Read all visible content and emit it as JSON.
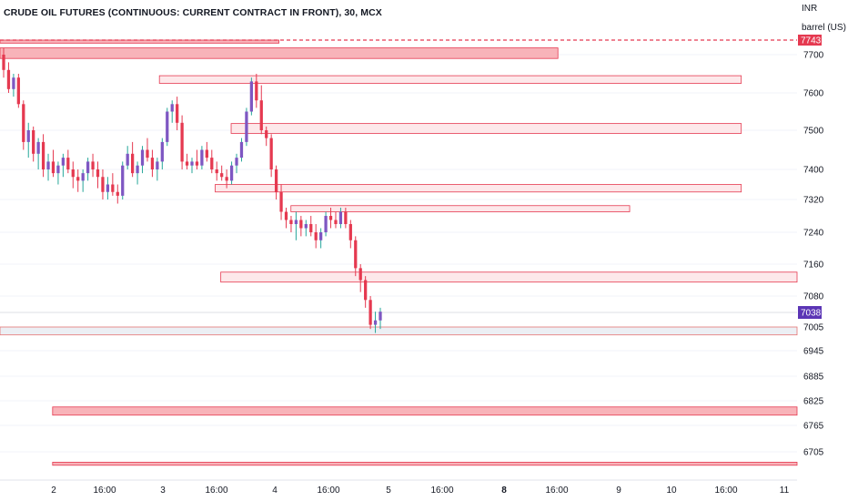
{
  "title": "CRUDE OIL FUTURES (CONTINUOUS: CURRENT CONTRACT IN FRONT), 30, MCX",
  "currency": "INR",
  "unit": "barrel (US)",
  "colors": {
    "up": "#7e57c2",
    "down": "#e53950",
    "wick_up": "#26a69a",
    "zone_fill_strong": "#f8b3b9",
    "zone_fill_light": "#fde8ea",
    "zone_border": "#e53950",
    "current_price_bg": "#5b35b5"
  },
  "chart_data": {
    "type": "candlestick",
    "ylim": [
      6660,
      7770
    ],
    "y_ticks": [
      "7700",
      "7600",
      "7500",
      "7400",
      "7320",
      "7240",
      "7160",
      "7080",
      "7005",
      "6945",
      "6885",
      "6825",
      "6765",
      "6705"
    ],
    "x_ticks": [
      {
        "label": "2",
        "bold": false
      },
      {
        "label": "16:00",
        "bold": false
      },
      {
        "label": "3",
        "bold": false
      },
      {
        "label": "16:00",
        "bold": false
      },
      {
        "label": "4",
        "bold": false
      },
      {
        "label": "16:00",
        "bold": false
      },
      {
        "label": "5",
        "bold": false
      },
      {
        "label": "16:00",
        "bold": false
      },
      {
        "label": "8",
        "bold": true
      },
      {
        "label": "16:00",
        "bold": false
      },
      {
        "label": "9",
        "bold": false
      },
      {
        "label": "10",
        "bold": false
      },
      {
        "label": "16:00",
        "bold": false
      },
      {
        "label": "11",
        "bold": false
      }
    ],
    "price_labels": {
      "resistance": "7743",
      "current": "7038"
    },
    "resistance_level": 7743,
    "current_price": 7038,
    "zones": [
      {
        "name": "zone-top-left",
        "from": 7734,
        "to": 7755,
        "start": 0,
        "end": 0.35,
        "style": "strong"
      },
      {
        "name": "zone-7700",
        "from": 7690,
        "to": 7720,
        "start": 0,
        "end": 0.7,
        "style": "strong"
      },
      {
        "name": "zone-7640",
        "from": 7625,
        "to": 7645,
        "start": 0.2,
        "end": 0.93,
        "style": "light"
      },
      {
        "name": "zone-7510",
        "from": 7492,
        "to": 7518,
        "start": 0.29,
        "end": 0.93,
        "style": "light"
      },
      {
        "name": "zone-7350",
        "from": 7340,
        "to": 7360,
        "start": 0.27,
        "end": 0.93,
        "style": "light"
      },
      {
        "name": "zone-7300",
        "from": 7290,
        "to": 7305,
        "start": 0.365,
        "end": 0.79,
        "style": "light"
      },
      {
        "name": "zone-7130",
        "from": 7115,
        "to": 7140,
        "start": 0.277,
        "end": 1.0,
        "style": "light"
      },
      {
        "name": "zone-6995",
        "from": 6985,
        "to": 7005,
        "start": 0,
        "end": 1.0,
        "style": "grey"
      },
      {
        "name": "zone-6810",
        "from": 6790,
        "to": 6810,
        "start": 0.066,
        "end": 1.0,
        "style": "strong"
      },
      {
        "name": "zone-6680",
        "from": 6670,
        "to": 6678,
        "start": 0.066,
        "end": 1.0,
        "style": "strong"
      }
    ],
    "candles": [
      [
        7700,
        7720,
        7640,
        7660
      ],
      [
        7660,
        7680,
        7600,
        7610
      ],
      [
        7610,
        7650,
        7590,
        7640
      ],
      [
        7640,
        7650,
        7560,
        7570
      ],
      [
        7570,
        7580,
        7450,
        7470
      ],
      [
        7470,
        7520,
        7430,
        7500
      ],
      [
        7500,
        7510,
        7420,
        7440
      ],
      [
        7440,
        7480,
        7400,
        7470
      ],
      [
        7470,
        7490,
        7380,
        7400
      ],
      [
        7400,
        7440,
        7370,
        7420
      ],
      [
        7420,
        7450,
        7380,
        7390
      ],
      [
        7390,
        7420,
        7360,
        7410
      ],
      [
        7410,
        7440,
        7380,
        7430
      ],
      [
        7430,
        7450,
        7390,
        7400
      ],
      [
        7400,
        7420,
        7350,
        7380
      ],
      [
        7380,
        7400,
        7340,
        7370
      ],
      [
        7370,
        7400,
        7340,
        7390
      ],
      [
        7390,
        7430,
        7370,
        7420
      ],
      [
        7420,
        7440,
        7380,
        7400
      ],
      [
        7400,
        7420,
        7350,
        7380
      ],
      [
        7380,
        7400,
        7320,
        7340
      ],
      [
        7340,
        7380,
        7320,
        7360
      ],
      [
        7360,
        7390,
        7330,
        7340
      ],
      [
        7340,
        7360,
        7310,
        7330
      ],
      [
        7330,
        7420,
        7320,
        7410
      ],
      [
        7410,
        7460,
        7400,
        7440
      ],
      [
        7440,
        7470,
        7380,
        7390
      ],
      [
        7390,
        7420,
        7360,
        7410
      ],
      [
        7410,
        7460,
        7390,
        7450
      ],
      [
        7450,
        7480,
        7420,
        7430
      ],
      [
        7430,
        7450,
        7380,
        7400
      ],
      [
        7400,
        7430,
        7370,
        7420
      ],
      [
        7420,
        7480,
        7400,
        7470
      ],
      [
        7470,
        7560,
        7460,
        7550
      ],
      [
        7550,
        7580,
        7520,
        7570
      ],
      [
        7570,
        7590,
        7500,
        7520
      ],
      [
        7520,
        7540,
        7400,
        7420
      ],
      [
        7420,
        7440,
        7400,
        7410
      ],
      [
        7410,
        7430,
        7390,
        7420
      ],
      [
        7420,
        7450,
        7400,
        7410
      ],
      [
        7410,
        7460,
        7400,
        7450
      ],
      [
        7450,
        7470,
        7420,
        7430
      ],
      [
        7430,
        7450,
        7390,
        7400
      ],
      [
        7400,
        7420,
        7370,
        7390
      ],
      [
        7390,
        7410,
        7370,
        7380
      ],
      [
        7380,
        7400,
        7350,
        7370
      ],
      [
        7370,
        7420,
        7360,
        7410
      ],
      [
        7410,
        7440,
        7390,
        7430
      ],
      [
        7430,
        7480,
        7420,
        7470
      ],
      [
        7470,
        7560,
        7460,
        7550
      ],
      [
        7550,
        7640,
        7540,
        7630
      ],
      [
        7630,
        7650,
        7560,
        7580
      ],
      [
        7580,
        7620,
        7490,
        7500
      ],
      [
        7500,
        7510,
        7460,
        7480
      ],
      [
        7480,
        7490,
        7380,
        7400
      ],
      [
        7400,
        7410,
        7320,
        7340
      ],
      [
        7340,
        7360,
        7270,
        7290
      ],
      [
        7290,
        7300,
        7250,
        7270
      ],
      [
        7270,
        7280,
        7240,
        7260
      ],
      [
        7260,
        7290,
        7220,
        7270
      ],
      [
        7270,
        7280,
        7230,
        7250
      ],
      [
        7250,
        7270,
        7230,
        7260
      ],
      [
        7260,
        7280,
        7230,
        7240
      ],
      [
        7240,
        7260,
        7200,
        7220
      ],
      [
        7220,
        7250,
        7200,
        7240
      ],
      [
        7240,
        7290,
        7230,
        7280
      ],
      [
        7280,
        7300,
        7250,
        7270
      ],
      [
        7270,
        7290,
        7250,
        7260
      ],
      [
        7260,
        7300,
        7250,
        7290
      ],
      [
        7290,
        7300,
        7250,
        7260
      ],
      [
        7260,
        7270,
        7200,
        7220
      ],
      [
        7220,
        7230,
        7130,
        7150
      ],
      [
        7150,
        7160,
        7090,
        7120
      ],
      [
        7120,
        7130,
        7050,
        7070
      ],
      [
        7070,
        7080,
        7000,
        7010
      ],
      [
        7010,
        7040,
        6990,
        7020
      ],
      [
        7020,
        7050,
        7000,
        7040
      ]
    ]
  }
}
